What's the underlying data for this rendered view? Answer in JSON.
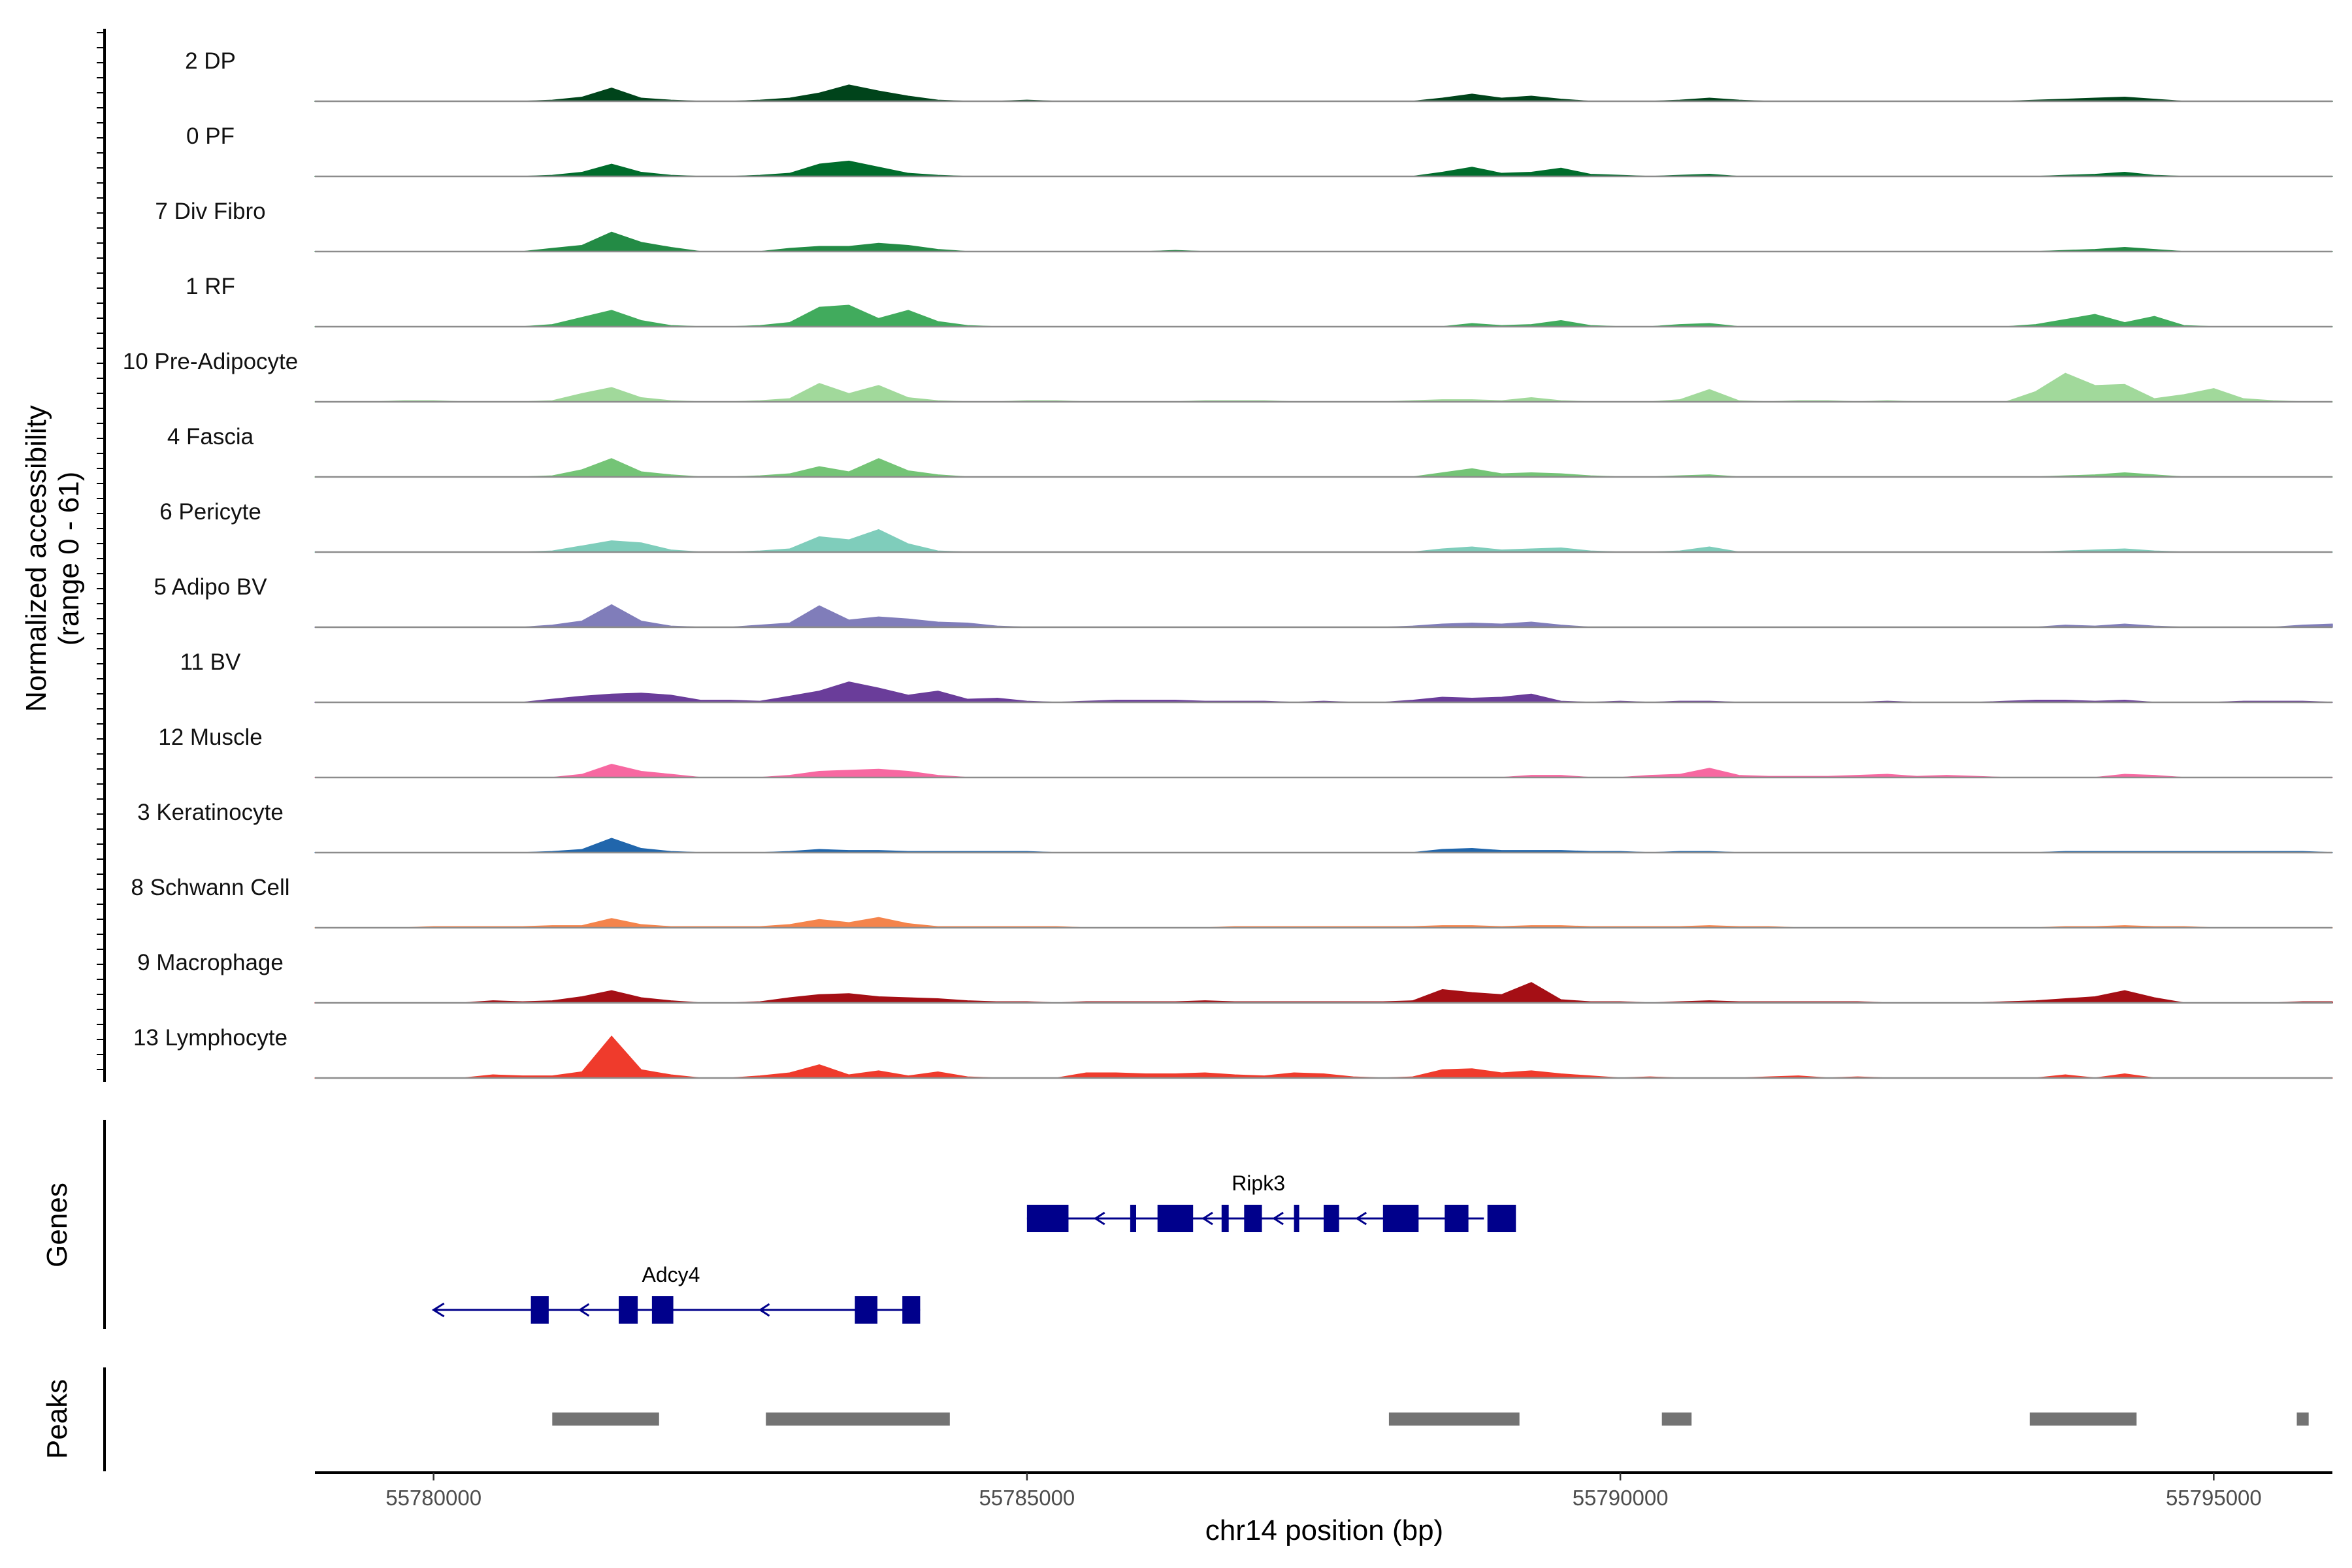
{
  "chart_data": {
    "type": "area",
    "title": "",
    "xlabel": "chr14 position (bp)",
    "ylabel": "Normalized accessibility",
    "ylabel_range": "(range 0 - 61)",
    "genes_label": "Genes",
    "peaks_label": "Peaks",
    "xlim": [
      55779000,
      55796000
    ],
    "ylim": [
      0,
      61
    ],
    "x_ticks": [
      {
        "value": 55780000,
        "label": "55780000"
      },
      {
        "value": 55785000,
        "label": "55785000"
      },
      {
        "value": 55790000,
        "label": "55790000"
      },
      {
        "value": 55795000,
        "label": "55795000"
      }
    ],
    "x": [
      55779000,
      55779250,
      55779500,
      55779750,
      55780000,
      55780250,
      55780500,
      55780750,
      55781000,
      55781250,
      55781500,
      55781750,
      55782000,
      55782250,
      55782500,
      55782750,
      55783000,
      55783250,
      55783500,
      55783750,
      55784000,
      55784250,
      55784500,
      55784750,
      55785000,
      55785250,
      55785500,
      55785750,
      55786000,
      55786250,
      55786500,
      55786750,
      55787000,
      55787250,
      55787500,
      55787750,
      55788000,
      55788250,
      55788500,
      55788750,
      55789000,
      55789250,
      55789500,
      55789750,
      55790000,
      55790250,
      55790500,
      55790750,
      55791000,
      55791250,
      55791500,
      55791750,
      55792000,
      55792250,
      55792500,
      55792750,
      55793000,
      55793250,
      55793500,
      55793750,
      55794000,
      55794250,
      55794500,
      55794750,
      55795000,
      55795250,
      55795500,
      55795750,
      55796000
    ],
    "series": [
      {
        "name": "2 DP",
        "color": "#00441b",
        "values": [
          0,
          0,
          0,
          0,
          0,
          0,
          0,
          0,
          1,
          4,
          13,
          3,
          1,
          0,
          0,
          1,
          3,
          8,
          16,
          10,
          5,
          1,
          0,
          0,
          1,
          0,
          0,
          0,
          0,
          0,
          0,
          0,
          0,
          0,
          0,
          0,
          0,
          0,
          3,
          7,
          3,
          5,
          2,
          0,
          0,
          0,
          1,
          3,
          1,
          0,
          0,
          0,
          0,
          0,
          0,
          0,
          0,
          0,
          1,
          2,
          3,
          4,
          2,
          0,
          0,
          0,
          0,
          0,
          0
        ]
      },
      {
        "name": "0 PF",
        "color": "#006d2c",
        "values": [
          0,
          0,
          0,
          0,
          0,
          0,
          0,
          0,
          1,
          4,
          12,
          4,
          1,
          0,
          0,
          1,
          3,
          12,
          15,
          9,
          3,
          1,
          0,
          0,
          0,
          0,
          0,
          0,
          0,
          0,
          0,
          0,
          0,
          0,
          0,
          0,
          0,
          0,
          4,
          9,
          3,
          4,
          8,
          2,
          1,
          0,
          1,
          2,
          0,
          0,
          0,
          0,
          0,
          0,
          0,
          0,
          0,
          0,
          0,
          1,
          2,
          4,
          1,
          0,
          0,
          0,
          0,
          0,
          0
        ]
      },
      {
        "name": "7 Div Fibro",
        "color": "#238b45",
        "values": [
          0,
          0,
          0,
          0,
          0,
          0,
          0,
          0,
          3,
          6,
          19,
          9,
          4,
          0,
          0,
          0,
          3,
          5,
          5,
          8,
          6,
          2,
          0,
          0,
          0,
          0,
          0,
          0,
          0,
          1,
          0,
          0,
          0,
          0,
          0,
          0,
          0,
          0,
          0,
          0,
          0,
          0,
          0,
          0,
          0,
          0,
          0,
          0,
          0,
          0,
          0,
          0,
          0,
          0,
          0,
          0,
          0,
          0,
          0,
          1,
          2,
          4,
          2,
          0,
          0,
          0,
          0,
          0,
          0
        ]
      },
      {
        "name": "1 RF",
        "color": "#41ab5d",
        "values": [
          0,
          0,
          0,
          0,
          0,
          0,
          0,
          0,
          2,
          9,
          16,
          6,
          1,
          0,
          0,
          1,
          4,
          19,
          21,
          8,
          16,
          5,
          1,
          0,
          0,
          0,
          0,
          0,
          0,
          0,
          0,
          0,
          0,
          0,
          0,
          0,
          0,
          0,
          0,
          3,
          1,
          2,
          6,
          1,
          0,
          0,
          2,
          3,
          0,
          0,
          0,
          0,
          0,
          0,
          0,
          0,
          0,
          0,
          2,
          7,
          12,
          4,
          10,
          1,
          0,
          0,
          0,
          0,
          0
        ]
      },
      {
        "name": "10 Pre-Adipocyte",
        "color": "#a1d99b",
        "values": [
          0,
          0,
          0,
          1,
          1,
          0,
          0,
          0,
          1,
          8,
          14,
          4,
          1,
          0,
          0,
          1,
          3,
          18,
          8,
          16,
          4,
          1,
          0,
          0,
          1,
          1,
          0,
          0,
          0,
          0,
          1,
          1,
          1,
          0,
          0,
          0,
          0,
          1,
          2,
          2,
          1,
          4,
          1,
          0,
          0,
          0,
          2,
          12,
          1,
          0,
          1,
          1,
          0,
          1,
          0,
          0,
          0,
          0,
          10,
          28,
          16,
          17,
          3,
          7,
          13,
          3,
          1,
          0,
          0
        ]
      },
      {
        "name": "4 Fascia",
        "color": "#74c476",
        "values": [
          0,
          0,
          0,
          0,
          0,
          0,
          0,
          0,
          1,
          7,
          18,
          5,
          2,
          0,
          0,
          1,
          3,
          10,
          5,
          18,
          6,
          2,
          0,
          0,
          0,
          0,
          0,
          0,
          0,
          0,
          0,
          0,
          0,
          0,
          0,
          0,
          0,
          0,
          4,
          8,
          3,
          4,
          3,
          1,
          0,
          0,
          1,
          2,
          0,
          0,
          0,
          0,
          0,
          0,
          0,
          0,
          0,
          0,
          0,
          1,
          2,
          4,
          2,
          0,
          0,
          0,
          0,
          0,
          0
        ]
      },
      {
        "name": "6 Pericyte",
        "color": "#7fcdbb",
        "values": [
          0,
          0,
          0,
          0,
          0,
          0,
          0,
          0,
          1,
          6,
          11,
          9,
          2,
          0,
          0,
          1,
          3,
          15,
          12,
          22,
          8,
          1,
          0,
          0,
          0,
          0,
          0,
          0,
          0,
          0,
          0,
          0,
          0,
          0,
          0,
          0,
          0,
          0,
          3,
          5,
          2,
          3,
          4,
          1,
          0,
          0,
          1,
          5,
          0,
          0,
          0,
          0,
          0,
          0,
          0,
          0,
          0,
          0,
          0,
          1,
          2,
          3,
          1,
          0,
          0,
          0,
          0,
          0,
          0
        ]
      },
      {
        "name": "5 Adipo BV",
        "color": "#807dba",
        "values": [
          0,
          0,
          0,
          0,
          0,
          0,
          0,
          0,
          2,
          6,
          22,
          6,
          1,
          0,
          0,
          2,
          4,
          21,
          7,
          10,
          8,
          5,
          4,
          1,
          0,
          0,
          0,
          0,
          0,
          0,
          0,
          0,
          0,
          0,
          0,
          0,
          0,
          1,
          3,
          4,
          3,
          5,
          2,
          0,
          0,
          0,
          0,
          0,
          0,
          0,
          0,
          0,
          0,
          0,
          0,
          0,
          0,
          0,
          0,
          2,
          1,
          3,
          1,
          0,
          0,
          0,
          0,
          2,
          3
        ]
      },
      {
        "name": "11 BV",
        "color": "#6a3d9a",
        "values": [
          0,
          0,
          0,
          0,
          0,
          0,
          0,
          0,
          3,
          6,
          8,
          9,
          7,
          2,
          2,
          1,
          6,
          11,
          20,
          14,
          7,
          11,
          3,
          4,
          1,
          0,
          1,
          2,
          2,
          2,
          1,
          1,
          1,
          0,
          1,
          0,
          0,
          2,
          5,
          4,
          5,
          8,
          1,
          0,
          1,
          0,
          1,
          1,
          0,
          0,
          0,
          0,
          0,
          1,
          0,
          0,
          0,
          1,
          2,
          2,
          1,
          2,
          0,
          0,
          0,
          1,
          1,
          1,
          0
        ]
      },
      {
        "name": "12 Muscle",
        "color": "#f768a1",
        "values": [
          0,
          0,
          0,
          0,
          0,
          0,
          0,
          0,
          0,
          3,
          13,
          6,
          3,
          0,
          0,
          0,
          2,
          6,
          7,
          8,
          6,
          2,
          0,
          0,
          0,
          0,
          0,
          0,
          0,
          0,
          0,
          0,
          0,
          0,
          0,
          0,
          0,
          0,
          0,
          0,
          0,
          2,
          2,
          0,
          0,
          2,
          3,
          9,
          2,
          1,
          1,
          1,
          2,
          3,
          1,
          2,
          1,
          0,
          0,
          0,
          0,
          3,
          2,
          0,
          0,
          0,
          0,
          0,
          0
        ]
      },
      {
        "name": "3 Keratinocyte",
        "color": "#2166ac",
        "values": [
          0,
          0,
          0,
          0,
          0,
          0,
          0,
          0,
          1,
          3,
          14,
          4,
          1,
          0,
          0,
          0,
          1,
          3,
          2,
          2,
          1,
          1,
          1,
          1,
          1,
          0,
          0,
          0,
          0,
          0,
          0,
          0,
          0,
          0,
          0,
          0,
          0,
          0,
          3,
          4,
          2,
          2,
          2,
          1,
          1,
          0,
          1,
          1,
          0,
          0,
          0,
          0,
          0,
          0,
          0,
          0,
          0,
          0,
          0,
          1,
          1,
          1,
          1,
          1,
          1,
          1,
          1,
          1,
          0
        ]
      },
      {
        "name": "8 Schwann Cell",
        "color": "#f4844c",
        "values": [
          0,
          0,
          0,
          0,
          1,
          1,
          1,
          1,
          2,
          2,
          9,
          3,
          1,
          1,
          1,
          1,
          3,
          8,
          5,
          10,
          4,
          1,
          1,
          1,
          1,
          1,
          0,
          0,
          0,
          0,
          0,
          1,
          1,
          1,
          1,
          1,
          1,
          1,
          2,
          2,
          1,
          2,
          2,
          1,
          1,
          1,
          1,
          2,
          1,
          1,
          0,
          0,
          0,
          0,
          0,
          0,
          0,
          0,
          0,
          1,
          1,
          2,
          1,
          1,
          0,
          0,
          0,
          0,
          0
        ]
      },
      {
        "name": "9 Macrophage",
        "color": "#a50f15",
        "values": [
          0,
          0,
          0,
          0,
          0,
          0,
          2,
          1,
          2,
          6,
          12,
          5,
          2,
          0,
          0,
          1,
          5,
          8,
          9,
          6,
          5,
          4,
          2,
          1,
          1,
          0,
          1,
          1,
          1,
          1,
          2,
          1,
          1,
          1,
          1,
          1,
          1,
          2,
          13,
          10,
          8,
          20,
          3,
          1,
          1,
          0,
          1,
          2,
          1,
          1,
          1,
          1,
          1,
          0,
          0,
          0,
          0,
          1,
          2,
          4,
          6,
          12,
          5,
          0,
          0,
          0,
          0,
          1,
          1
        ]
      },
      {
        "name": "13 Lymphocyte",
        "color": "#ef3b2c",
        "values": [
          0,
          0,
          0,
          0,
          0,
          0,
          3,
          2,
          2,
          6,
          41,
          8,
          3,
          0,
          0,
          2,
          5,
          13,
          3,
          7,
          2,
          6,
          1,
          0,
          0,
          0,
          5,
          5,
          4,
          4,
          5,
          3,
          2,
          5,
          4,
          1,
          0,
          1,
          8,
          9,
          5,
          7,
          4,
          2,
          0,
          1,
          0,
          0,
          0,
          1,
          2,
          0,
          1,
          0,
          0,
          0,
          0,
          0,
          0,
          3,
          0,
          4,
          0,
          0,
          0,
          0,
          0,
          0,
          0
        ]
      }
    ],
    "genes": [
      {
        "name": "Ripk3",
        "strand": "-",
        "start": 55785000,
        "end": 55788850,
        "exons": [
          [
            55785000,
            55785350
          ],
          [
            55785870,
            55785920
          ],
          [
            55786100,
            55786400
          ],
          [
            55786640,
            55786700
          ],
          [
            55786830,
            55786980
          ],
          [
            55787250,
            55787290
          ],
          [
            55787500,
            55787630
          ],
          [
            55788000,
            55788300
          ],
          [
            55788520,
            55788720
          ],
          [
            55788880,
            55789120
          ]
        ]
      },
      {
        "name": "Adcy4",
        "strand": "-",
        "start": 55780000,
        "end": 55784100,
        "exons": [
          [
            55780820,
            55780970
          ],
          [
            55781560,
            55781720
          ],
          [
            55781840,
            55782020
          ],
          [
            55783550,
            55783740
          ],
          [
            55783950,
            55784100
          ]
        ]
      }
    ],
    "peaks": [
      [
        55781000,
        55781900
      ],
      [
        55782800,
        55784350
      ],
      [
        55788050,
        55789150
      ],
      [
        55790350,
        55790600
      ],
      [
        55793450,
        55794350
      ],
      [
        55795700,
        55795800
      ]
    ]
  }
}
